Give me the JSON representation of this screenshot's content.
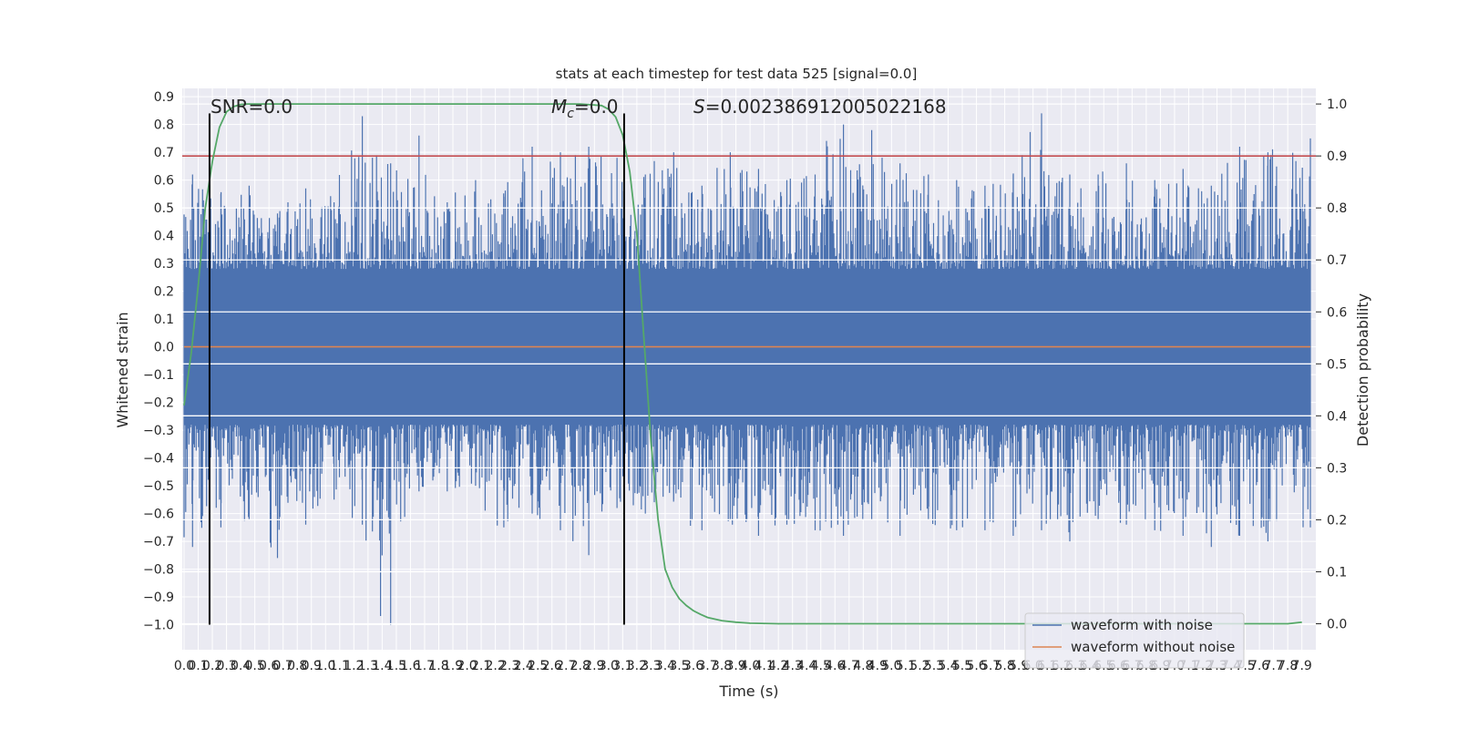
{
  "chart_data": {
    "type": "line",
    "title": "stats at each timestep for test data 525 [signal=0.0]",
    "xlabel": "Time (s)",
    "ylabel": "Whitened strain",
    "y2label": "Detection probability",
    "xlim": [
      0.0,
      7.96
    ],
    "ylim": [
      -1.09,
      0.93
    ],
    "y2lim": [
      -0.05,
      1.03
    ],
    "x_ticks": [
      "0.0",
      "0.1",
      "0.2",
      "0.3",
      "0.4",
      "0.5",
      "0.6",
      "0.7",
      "0.8",
      "0.9",
      "1.0",
      "1.1",
      "1.2",
      "1.3",
      "1.4",
      "1.5",
      "1.6",
      "1.7",
      "1.8",
      "1.9",
      "2.0",
      "2.1",
      "2.2",
      "2.3",
      "2.4",
      "2.5",
      "2.6",
      "2.7",
      "2.8",
      "2.9",
      "3.0",
      "3.1",
      "3.2",
      "3.3",
      "3.4",
      "3.5",
      "3.6",
      "3.7",
      "3.8",
      "3.9",
      "4.0",
      "4.1",
      "4.2",
      "4.3",
      "4.4",
      "4.5",
      "4.6",
      "4.7",
      "4.8",
      "4.9",
      "5.0",
      "5.1",
      "5.2",
      "5.3",
      "5.4",
      "5.5",
      "5.6",
      "5.7",
      "5.8",
      "5.9",
      "6.0",
      "6.1",
      "6.2",
      "6.3",
      "6.4",
      "6.5",
      "6.6",
      "6.7",
      "6.8",
      "6.9",
      "7.0",
      "7.1",
      "7.2",
      "7.3",
      "7.4",
      "7.5",
      "7.6",
      "7.7",
      "7.8",
      "7.9"
    ],
    "y_ticks": [
      "0.9",
      "0.8",
      "0.7",
      "0.6",
      "0.5",
      "0.4",
      "0.3",
      "0.2",
      "0.1",
      "0.0",
      "−0.1",
      "−0.2",
      "−0.3",
      "−0.4",
      "−0.5",
      "−0.6",
      "−0.7",
      "−0.8",
      "−0.9",
      "−1.0"
    ],
    "y2_ticks": [
      "1.0",
      "0.9",
      "0.8",
      "0.7",
      "0.6",
      "0.5",
      "0.4",
      "0.3",
      "0.2",
      "0.1",
      "0.0"
    ],
    "annotations": {
      "snr": "SNR=0.0",
      "mc_symbol": "M",
      "mc_sub": "c",
      "mc_value": "=0.0",
      "s_symbol": "S",
      "s_value": "=0.002386912005022168"
    },
    "series": [
      {
        "name": "waveform with noise",
        "color": "#4c72b0",
        "envelope_x": [
          0.0,
          0.2,
          0.4,
          0.6,
          0.8,
          1.0,
          1.2,
          1.4,
          1.6,
          1.8,
          2.0,
          2.2,
          2.4,
          2.6,
          2.8,
          3.0,
          3.2,
          3.4,
          3.6,
          3.8,
          4.0,
          4.2,
          4.4,
          4.6,
          4.8,
          5.0,
          5.2,
          5.4,
          5.6,
          5.8,
          6.0,
          6.2,
          6.4,
          6.6,
          6.8,
          7.0,
          7.2,
          7.4,
          7.6,
          7.9
        ],
        "envelope_max": [
          0.62,
          0.55,
          0.58,
          0.48,
          0.57,
          0.52,
          0.83,
          0.66,
          0.76,
          0.52,
          0.6,
          0.54,
          0.72,
          0.7,
          0.72,
          0.68,
          0.62,
          0.7,
          0.58,
          0.7,
          0.64,
          0.6,
          0.62,
          0.8,
          0.78,
          0.66,
          0.62,
          0.6,
          0.58,
          0.62,
          0.84,
          0.62,
          0.62,
          0.66,
          0.6,
          0.64,
          0.58,
          0.72,
          0.7,
          0.75
        ],
        "envelope_min": [
          -0.72,
          -0.65,
          -0.62,
          -0.76,
          -0.64,
          -0.55,
          -0.64,
          -1.0,
          -0.52,
          -0.52,
          -0.5,
          -0.65,
          -0.6,
          -0.66,
          -0.75,
          -0.58,
          -0.6,
          -0.55,
          -0.66,
          -0.62,
          -0.68,
          -0.64,
          -0.66,
          -0.68,
          -0.62,
          -0.68,
          -0.62,
          -0.66,
          -0.66,
          -0.68,
          -0.66,
          -0.7,
          -0.62,
          -0.64,
          -0.66,
          -0.68,
          -0.72,
          -0.68,
          -0.7,
          -0.65
        ]
      },
      {
        "name": "waveform without noise",
        "color": "#dd8452",
        "x": [
          0.0,
          7.96
        ],
        "values": [
          0.0,
          0.0
        ]
      },
      {
        "color": "#55a868",
        "axis": "right",
        "x": [
          0.0,
          0.05,
          0.1,
          0.15,
          0.2,
          0.25,
          0.3,
          0.35,
          0.4,
          0.45,
          0.5,
          0.6,
          0.8,
          1.0,
          2.0,
          2.6,
          2.8,
          2.95,
          3.0,
          3.05,
          3.1,
          3.15,
          3.2,
          3.25,
          3.3,
          3.35,
          3.4,
          3.45,
          3.5,
          3.55,
          3.6,
          3.65,
          3.7,
          3.8,
          3.9,
          4.0,
          4.2,
          4.5,
          7.0,
          7.8,
          7.9
        ],
        "values": [
          0.42,
          0.52,
          0.65,
          0.8,
          0.89,
          0.955,
          0.985,
          0.995,
          0.999,
          1.0,
          1.0,
          1.0,
          1.0,
          1.0,
          1.0,
          1.0,
          1.0,
          0.997,
          0.99,
          0.975,
          0.94,
          0.87,
          0.75,
          0.55,
          0.35,
          0.2,
          0.105,
          0.07,
          0.048,
          0.035,
          0.025,
          0.018,
          0.012,
          0.006,
          0.003,
          0.001,
          0.0,
          0.0,
          0.0,
          0.0,
          0.003
        ]
      }
    ],
    "hlines_right_axis": [
      {
        "y": 0.9,
        "color": "#c44e52"
      }
    ],
    "vlines": [
      {
        "x": 0.18,
        "color": "#000000"
      },
      {
        "x": 3.11,
        "color": "#000000"
      }
    ],
    "vline_y_range": [
      -1.0,
      0.84
    ],
    "grid": true,
    "legend": "bottom-right"
  }
}
